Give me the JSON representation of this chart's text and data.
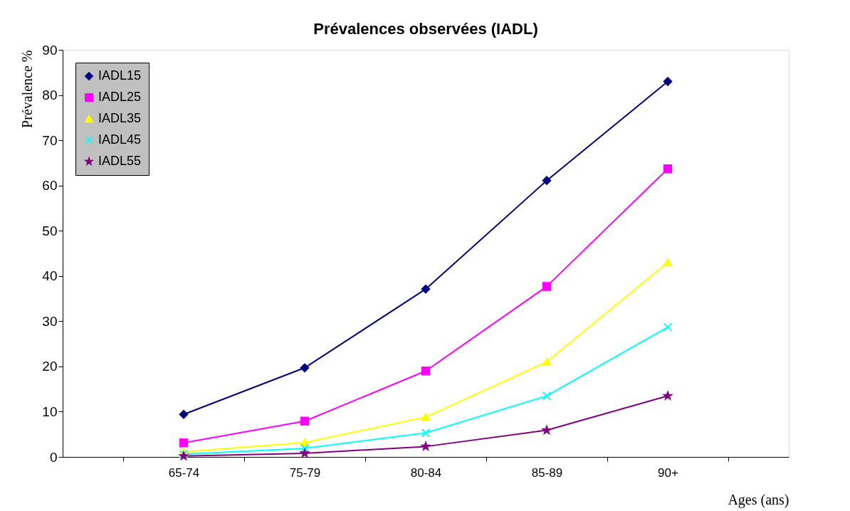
{
  "chart_data": {
    "type": "line",
    "title": "Prévalences observées (IADL)",
    "xlabel": "Ages (ans)",
    "ylabel": "Prévalence %",
    "categories": [
      "65-74",
      "75-79",
      "80-84",
      "85-89",
      "90+"
    ],
    "ylim": [
      0,
      90
    ],
    "yticks": [
      0,
      10,
      20,
      30,
      40,
      50,
      60,
      70,
      80,
      90
    ],
    "grid": false,
    "legend": "top left",
    "line_style": "solid",
    "series": [
      {
        "name": "IADL15",
        "color": "#000080",
        "marker": "diamond",
        "values": [
          9.4,
          19.7,
          37.1,
          61.1,
          83.0
        ]
      },
      {
        "name": "IADL25",
        "color": "#ff00ff",
        "marker": "square",
        "values": [
          3.1,
          7.9,
          19.0,
          37.7,
          63.7
        ]
      },
      {
        "name": "IADL35",
        "color": "#ffff00",
        "marker": "triangle",
        "values": [
          1.1,
          3.2,
          8.8,
          21.0,
          43.0
        ]
      },
      {
        "name": "IADL45",
        "color": "#00ffff",
        "marker": "cross",
        "values": [
          0.6,
          1.9,
          5.3,
          13.5,
          28.7
        ]
      },
      {
        "name": "IADL55",
        "color": "#800080",
        "marker": "star",
        "values": [
          0.2,
          0.8,
          2.3,
          5.9,
          13.5
        ]
      }
    ]
  }
}
